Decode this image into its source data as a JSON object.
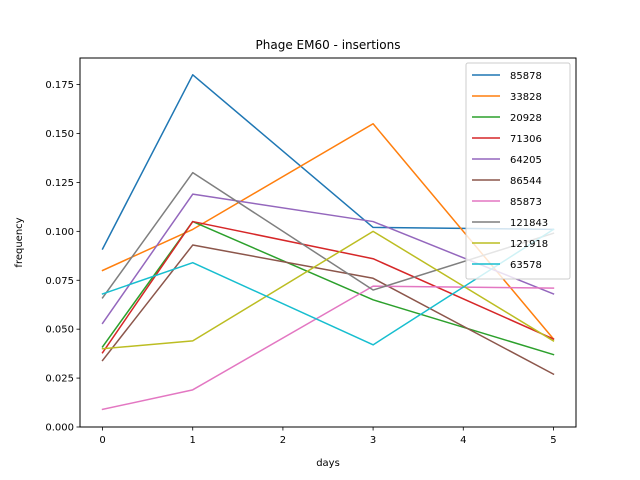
{
  "chart_data": {
    "type": "line",
    "title": "Phage EM60 - insertions",
    "xlabel": "days",
    "ylabel": "frequency",
    "x": [
      0,
      1,
      3,
      5
    ],
    "xticks": [
      0,
      1,
      2,
      3,
      4,
      5
    ],
    "xtick_labels": [
      "0",
      "1",
      "2",
      "3",
      "4",
      "5"
    ],
    "xlim": [
      -0.25,
      5.25
    ],
    "yticks": [
      0.0,
      0.025,
      0.05,
      0.075,
      0.1,
      0.125,
      0.15,
      0.175
    ],
    "ytick_labels": [
      "0.000",
      "0.025",
      "0.050",
      "0.075",
      "0.100",
      "0.125",
      "0.150",
      "0.175"
    ],
    "ylim": [
      0.0,
      0.1886
    ],
    "legend_position": "top-right",
    "grid": false,
    "series": [
      {
        "name": "85878",
        "color": "#1f77b4",
        "values": [
          0.091,
          0.18,
          0.102,
          0.101
        ]
      },
      {
        "name": "33828",
        "color": "#ff7f0e",
        "values": [
          0.08,
          0.101,
          0.155,
          0.045
        ]
      },
      {
        "name": "20928",
        "color": "#2ca02c",
        "values": [
          0.041,
          0.105,
          0.065,
          0.037
        ]
      },
      {
        "name": "71306",
        "color": "#d62728",
        "values": [
          0.038,
          0.105,
          0.086,
          0.045
        ]
      },
      {
        "name": "64205",
        "color": "#9467bd",
        "values": [
          0.053,
          0.119,
          0.105,
          0.068
        ]
      },
      {
        "name": "86544",
        "color": "#8c564b",
        "values": [
          0.034,
          0.093,
          0.076,
          0.027
        ]
      },
      {
        "name": "85873",
        "color": "#e377c2",
        "values": [
          0.009,
          0.019,
          0.072,
          0.071
        ]
      },
      {
        "name": "121843",
        "color": "#7f7f7f",
        "values": [
          0.066,
          0.13,
          0.07,
          0.099
        ]
      },
      {
        "name": "121918",
        "color": "#bcbd22",
        "values": [
          0.04,
          0.044,
          0.1,
          0.044
        ]
      },
      {
        "name": "63578",
        "color": "#17becf",
        "values": [
          0.068,
          0.084,
          0.042,
          0.101
        ]
      }
    ]
  }
}
